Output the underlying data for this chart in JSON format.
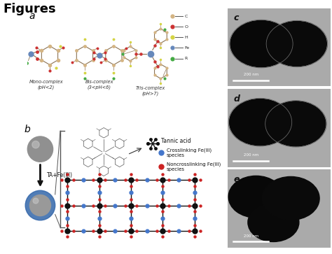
{
  "title": "Figures",
  "title_fontsize": 13,
  "title_fontweight": "bold",
  "label_a": "a",
  "label_b": "b",
  "label_c": "c",
  "label_d": "d",
  "label_e": "e",
  "label_fontsize": 10,
  "mono_label": "Mono-complex\n(pH<2)",
  "bis_label": "Bis-complex\n(3<pH<6)",
  "tris_label": "Tris-complex\n(pH>7)",
  "legend_items": [
    {
      "label": "C",
      "color": "#d4b483"
    },
    {
      "label": "O",
      "color": "#cc3333"
    },
    {
      "label": "H",
      "color": "#d4d444"
    },
    {
      "label": "Fe",
      "color": "#6688bb"
    },
    {
      "label": "R",
      "color": "#44aa44"
    }
  ],
  "crosslink_label": "Crosslinking Fe(III)\nspecies",
  "noncrosslink_label": "Noncrosslinking Fe(III)\nspecies",
  "tannic_label": "Tannic acid",
  "ta_fe_label": "TA+Fe(III)",
  "bg_color": "#ffffff",
  "tem_bg": "#aaaaaa",
  "sphere_gray": "#888888",
  "sphere_blue": "#4477bb",
  "text_fontsize": 6,
  "small_fontsize": 5.5
}
